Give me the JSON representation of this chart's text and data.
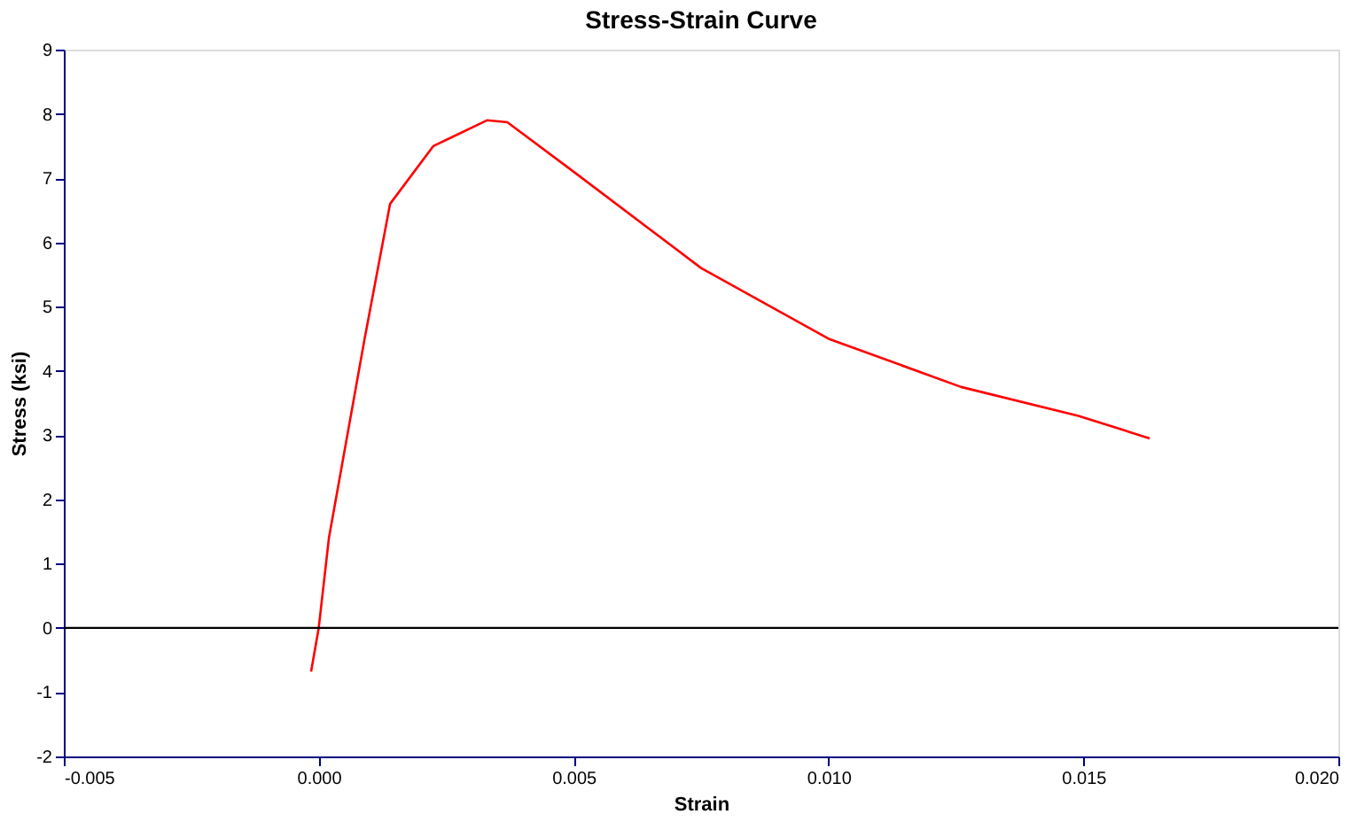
{
  "chart_data": {
    "type": "line",
    "title": "Stress-Strain Curve",
    "xlabel": "Strain",
    "ylabel": "Stress (ksi)",
    "x": [
      -0.00015,
      0.0,
      0.0002,
      0.0009,
      0.0014,
      0.00225,
      0.0033,
      0.0037,
      0.005,
      0.0075,
      0.01,
      0.0126,
      0.0149,
      0.0163
    ],
    "series": [
      {
        "color": "#ff0000",
        "values": [
          -0.68,
          0.0,
          1.4,
          4.5,
          6.6,
          7.5,
          7.9,
          7.87,
          7.1,
          5.6,
          4.5,
          3.75,
          3.3,
          2.95
        ]
      }
    ],
    "xlim": [
      -0.005,
      0.02
    ],
    "xticks": [
      {
        "value": -0.005,
        "label": "-0.005"
      },
      {
        "value": 0,
        "label": "0.000"
      },
      {
        "value": 0.005,
        "label": "0.005"
      },
      {
        "value": 0.01,
        "label": "0.010"
      },
      {
        "value": 0.015,
        "label": "0.015"
      },
      {
        "value": 0.02,
        "label": "0.020"
      }
    ],
    "ylim": [
      -2,
      9
    ],
    "yticks": [
      -2,
      -1,
      0,
      1,
      2,
      3,
      4,
      5,
      6,
      7,
      8,
      9
    ],
    "ref_lines": [
      {
        "axis": "y",
        "value": 0,
        "color": "#000000"
      }
    ],
    "grid": false,
    "marker": "none",
    "line_style": "solid"
  }
}
